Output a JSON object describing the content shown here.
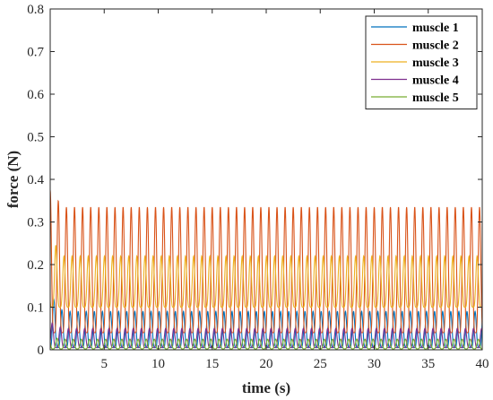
{
  "chart_data": {
    "type": "line",
    "title": "",
    "xlabel": "time (s)",
    "ylabel": "force (N)",
    "xlim": [
      0,
      40
    ],
    "ylim": [
      0,
      0.8
    ],
    "xticks": [
      5,
      10,
      15,
      20,
      25,
      30,
      35,
      40
    ],
    "yticks": [
      0,
      0.1,
      0.2,
      0.3,
      0.4,
      0.5,
      0.6,
      0.7,
      0.8
    ],
    "xtick_labels": [
      "5",
      "10",
      "15",
      "20",
      "25",
      "30",
      "35",
      "40"
    ],
    "ytick_labels": [
      "0",
      "0.1",
      "0.2",
      "0.3",
      "0.4",
      "0.5",
      "0.6",
      "0.7",
      "0.8"
    ],
    "grid": false,
    "legend_position": "top-right",
    "period_s": 0.75,
    "series": [
      {
        "name": "muscle 1",
        "color": "#0072BD",
        "min": 0.005,
        "max": 0.09,
        "phase": 0.55,
        "initial_peak": 0.13
      },
      {
        "name": "muscle 2",
        "color": "#D95319",
        "min": 0.04,
        "max": 0.335,
        "phase": 0.0,
        "initial_peak": 0.375
      },
      {
        "name": "muscle 3",
        "color": "#EDB120",
        "min": 0.1,
        "max": 0.22,
        "phase": 0.3,
        "initial_peak": 0.265
      },
      {
        "name": "muscle 4",
        "color": "#7E2F8E",
        "min": 0.005,
        "max": 0.05,
        "phase": 0.75,
        "initial_peak": 0.065
      },
      {
        "name": "muscle 5",
        "color": "#77AC30",
        "min": 0.002,
        "max": 0.025,
        "phase": 0.15,
        "initial_peak": 0.03
      }
    ]
  }
}
